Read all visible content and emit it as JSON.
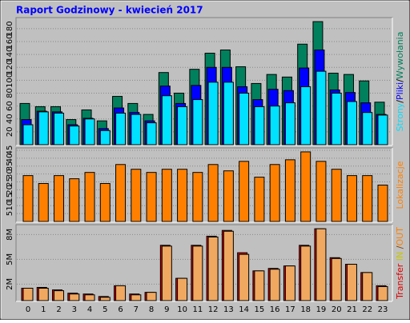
{
  "chart_data": [
    {
      "type": "bar",
      "title": "Raport Godzinowy -  kwiecień 2017",
      "series": [
        {
          "name": "Wywołania",
          "color": "#00805c",
          "values": [
            64,
            59,
            59,
            39,
            54,
            37,
            75,
            64,
            47,
            112,
            80,
            117,
            142,
            147,
            121,
            95,
            109,
            105,
            156,
            191,
            111,
            109,
            99,
            66
          ]
        },
        {
          "name": "Pliki",
          "color": "#0000ff",
          "values": [
            39,
            52,
            51,
            31,
            41,
            25,
            57,
            50,
            37,
            91,
            64,
            92,
            120,
            120,
            90,
            70,
            86,
            84,
            119,
            147,
            85,
            81,
            65,
            47
          ]
        },
        {
          "name": "Strony",
          "color": "#00e0ff",
          "values": [
            31,
            51,
            49,
            29,
            40,
            22,
            49,
            47,
            34,
            76,
            59,
            70,
            97,
            97,
            80,
            59,
            60,
            65,
            90,
            114,
            80,
            67,
            50,
            46
          ]
        }
      ],
      "legend_order": [
        2,
        1,
        0
      ],
      "legend_separator": "/",
      "ylim": [
        0,
        196
      ],
      "yticks": [
        20,
        40,
        60,
        80,
        100,
        120,
        140,
        160,
        180
      ],
      "grid": true
    },
    {
      "type": "bar",
      "series": [
        {
          "name": "Lokalizacje",
          "color": "#ff8000",
          "values": [
            29,
            24,
            29,
            27,
            31,
            24,
            36,
            33,
            31,
            33,
            33,
            31,
            36,
            32,
            38,
            28,
            36,
            39,
            44,
            38,
            33,
            29,
            29,
            23
          ]
        }
      ],
      "ylim": [
        0,
        46
      ],
      "yticks": [
        5,
        10,
        15,
        20,
        25,
        30,
        35,
        40,
        45
      ],
      "grid": true
    },
    {
      "type": "bar",
      "categories": [
        "0",
        "1",
        "2",
        "3",
        "4",
        "5",
        "6",
        "7",
        "8",
        "9",
        "10",
        "11",
        "12",
        "13",
        "14",
        "15",
        "16",
        "17",
        "18",
        "19",
        "20",
        "21",
        "22",
        "23"
      ],
      "series": [
        {
          "color": "#dd0000",
          "values": [
            1.5,
            1.6,
            1.3,
            0.9,
            0.8,
            0.5,
            1.8,
            0.8,
            1.0,
            6.7,
            2.7,
            6.7,
            7.8,
            8.5,
            5.8,
            3.6,
            3.9,
            4.2,
            6.7,
            8.7,
            5.2,
            4.4,
            3.4,
            1.8
          ]
        },
        {
          "color": "#f0a860",
          "values": [
            1.5,
            1.5,
            1.2,
            0.8,
            0.7,
            0.4,
            1.8,
            0.7,
            1.0,
            6.6,
            2.7,
            6.6,
            7.7,
            8.4,
            5.6,
            3.6,
            3.8,
            4.2,
            6.6,
            8.7,
            5.1,
            4.4,
            3.4,
            1.7
          ]
        }
      ],
      "legend": [
        {
          "text": "Transfer",
          "color": "#dd0000"
        },
        {
          "text": " IN ",
          "color": "#c8c800"
        },
        {
          "text": "/",
          "color": "#804000"
        },
        {
          "text": "OUT",
          "color": "#ff8000"
        }
      ],
      "ylim": [
        0,
        9.1
      ],
      "yticks": [
        {
          "value": 2,
          "label": "2M"
        },
        {
          "value": 5,
          "label": "5M"
        },
        {
          "value": 8,
          "label": "8M"
        }
      ],
      "grid": true
    }
  ]
}
